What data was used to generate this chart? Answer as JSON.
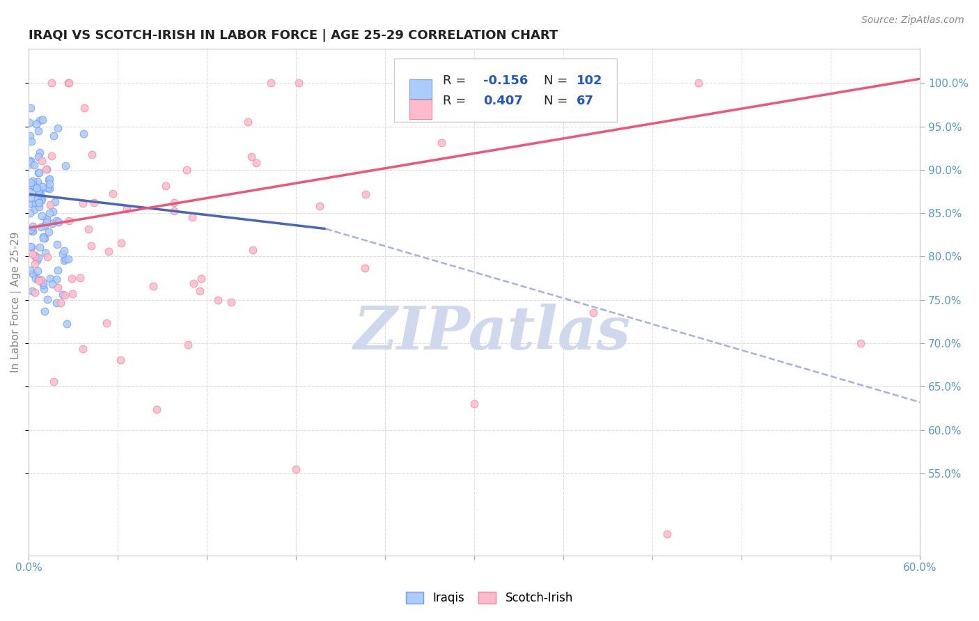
{
  "title": "IRAQI VS SCOTCH-IRISH IN LABOR FORCE | AGE 25-29 CORRELATION CHART",
  "source_text": "Source: ZipAtlas.com",
  "ylabel": "In Labor Force | Age 25-29",
  "xlim": [
    0.0,
    0.6
  ],
  "ylim": [
    0.455,
    1.04
  ],
  "ytick_positions": [
    0.55,
    0.6,
    0.65,
    0.7,
    0.75,
    0.8,
    0.85,
    0.9,
    0.95,
    1.0
  ],
  "ytick_labels": [
    "55.0%",
    "60.0%",
    "65.0%",
    "70.0%",
    "75.0%",
    "80.0%",
    "85.0%",
    "90.0%",
    "95.0%",
    "100.0%"
  ],
  "xtick_positions": [
    0.0,
    0.06,
    0.12,
    0.18,
    0.24,
    0.3,
    0.36,
    0.42,
    0.48,
    0.54,
    0.6
  ],
  "xtick_labels": [
    "0.0%",
    "",
    "",
    "",
    "",
    "",
    "",
    "",
    "",
    "",
    "60.0%"
  ],
  "iraqis_color": "#aaccff",
  "iraqis_edge_color": "#7799ee",
  "scotch_color": "#ffbbcc",
  "scotch_edge_color": "#ee8899",
  "iraqis_line_color": "#4466bb",
  "scotch_line_color": "#ee5577",
  "dashed_line_color": "#99aadd",
  "watermark_color": "#d0d8ee",
  "title_fontsize": 13,
  "tick_fontsize": 11,
  "marker_size": 60,
  "seed": 77,
  "iraqi_line_x0": 0.0,
  "iraqi_line_x1": 0.2,
  "iraqi_line_y0": 0.872,
  "iraqi_line_y1": 0.832,
  "scotch_line_x0": 0.0,
  "scotch_line_x1": 0.6,
  "scotch_line_y0": 0.833,
  "scotch_line_y1": 1.005,
  "dash_line_x0": 0.2,
  "dash_line_x1": 0.6,
  "dash_line_y0": 0.832,
  "dash_line_y1": 0.632
}
